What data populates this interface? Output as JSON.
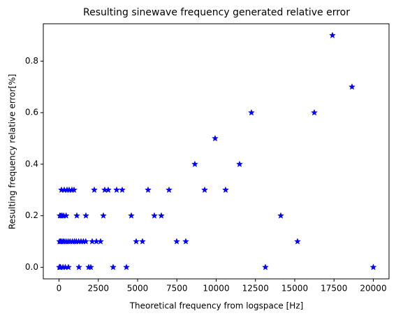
{
  "chart_data": {
    "type": "scatter",
    "title": "Resulting sinewave frequency generated relative error",
    "x_label": "Theoretical frequency from logspace [Hz]",
    "y_label": "Resulting frequency relative error[%]",
    "color": "#0000ff",
    "marker": "star",
    "x": [
      20,
      60,
      100,
      250,
      400,
      600,
      1267,
      1889,
      2022,
      3444,
      4289,
      13133,
      20000,
      30,
      80,
      150,
      250,
      330,
      450,
      580,
      700,
      850,
      980,
      1100,
      1250,
      1400,
      1550,
      1700,
      2111,
      2378,
      2644,
      4911,
      5311,
      7489,
      8067,
      15178,
      50,
      120,
      200,
      300,
      450,
      1133,
      1711,
      2822,
      4600,
      6067,
      6511,
      14111,
      156,
      333,
      511,
      644,
      822,
      956,
      2244,
      2911,
      3133,
      3667,
      4022,
      5667,
      7000,
      9267,
      10600,
      8644,
      11489,
      9933,
      12244,
      16244,
      18644,
      17400
    ],
    "values": [
      0,
      0,
      0,
      0,
      0,
      0,
      0,
      0,
      0,
      0,
      0,
      0,
      0,
      0.1,
      0.1,
      0.1,
      0.1,
      0.1,
      0.1,
      0.1,
      0.1,
      0.1,
      0.1,
      0.1,
      0.1,
      0.1,
      0.1,
      0.1,
      0.1,
      0.1,
      0.1,
      0.1,
      0.1,
      0.1,
      0.1,
      0.1,
      0.2,
      0.2,
      0.2,
      0.2,
      0.2,
      0.2,
      0.2,
      0.2,
      0.2,
      0.2,
      0.2,
      0.2,
      0.3,
      0.3,
      0.3,
      0.3,
      0.3,
      0.3,
      0.3,
      0.3,
      0.3,
      0.3,
      0.3,
      0.3,
      0.3,
      0.3,
      0.3,
      0.4,
      0.4,
      0.5,
      0.6,
      0.6,
      0.7,
      0.9
    ],
    "xlim": [
      -1000,
      21000
    ],
    "xticks": [
      0,
      2500,
      5000,
      7500,
      10000,
      12500,
      15000,
      17500,
      20000
    ],
    "ylim": [
      -0.045,
      0.945
    ],
    "yticks": [
      {
        "value": 0,
        "label": "0.0"
      },
      0.2,
      0.4,
      0.6,
      0.8
    ],
    "grid": false
  }
}
